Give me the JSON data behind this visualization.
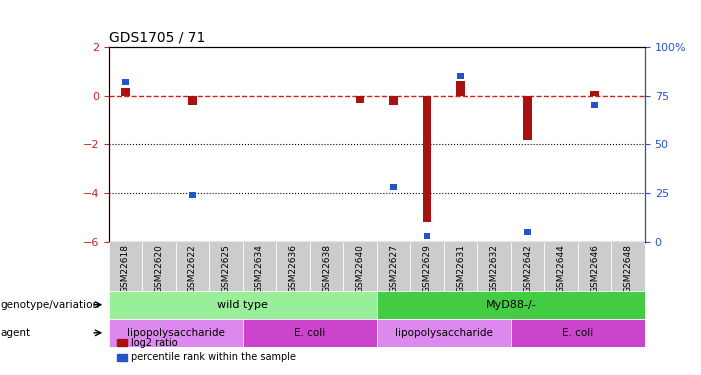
{
  "title": "GDS1705 / 71",
  "samples": [
    "GSM22618",
    "GSM22620",
    "GSM22622",
    "GSM22625",
    "GSM22634",
    "GSM22636",
    "GSM22638",
    "GSM22640",
    "GSM22627",
    "GSM22629",
    "GSM22631",
    "GSM22632",
    "GSM22642",
    "GSM22644",
    "GSM22646",
    "GSM22648"
  ],
  "log2_ratio": [
    0.3,
    0.0,
    -0.4,
    0.0,
    0.0,
    0.0,
    0.0,
    -0.3,
    -0.4,
    -5.2,
    0.6,
    0.0,
    -1.8,
    0.0,
    0.2,
    0.0
  ],
  "percentile_rank": [
    82,
    0,
    24,
    0,
    0,
    0,
    0,
    0,
    28,
    3,
    85,
    0,
    5,
    0,
    70,
    0
  ],
  "genotype_groups": [
    {
      "label": "wild type",
      "start": 0,
      "end": 8,
      "color": "#99ee99"
    },
    {
      "label": "MyD88-/-",
      "start": 8,
      "end": 16,
      "color": "#44cc44"
    }
  ],
  "agent_groups": [
    {
      "label": "lipopolysaccharide",
      "start": 0,
      "end": 4,
      "color": "#dd88ee"
    },
    {
      "label": "E. coli",
      "start": 4,
      "end": 8,
      "color": "#cc44cc"
    },
    {
      "label": "lipopolysaccharide",
      "start": 8,
      "end": 12,
      "color": "#dd88ee"
    },
    {
      "label": "E. coli",
      "start": 12,
      "end": 16,
      "color": "#cc44cc"
    }
  ],
  "ylim_left": [
    -6,
    2
  ],
  "ylim_right": [
    0,
    100
  ],
  "dotted_lines": [
    -2,
    -4
  ],
  "bar_color_red": "#aa1111",
  "bar_color_blue": "#2255cc",
  "dashed_line_color": "#cc2222",
  "background_color": "#ffffff",
  "axis_color_left": "#cc2222",
  "axis_color_right": "#2255cc",
  "legend_red_label": "log2 ratio",
  "legend_blue_label": "percentile rank within the sample",
  "genotype_label": "genotype/variation",
  "agent_label": "agent"
}
